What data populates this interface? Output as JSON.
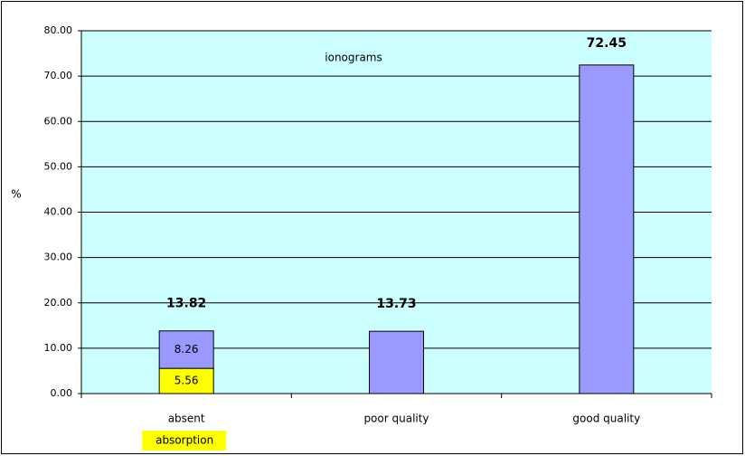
{
  "chart_data": {
    "type": "stacked_bar",
    "title": "ionograms",
    "ylabel": "%",
    "categories": [
      "absent",
      "poor quality",
      "good quality"
    ],
    "series": [
      {
        "name": "absorption",
        "color": "#ffff00",
        "values": [
          5.56,
          null,
          null
        ]
      },
      {
        "color": "#9999ff",
        "values": [
          8.26,
          13.73,
          72.45
        ]
      }
    ],
    "totals": [
      13.82,
      13.73,
      72.45
    ],
    "ylim": [
      0,
      80
    ],
    "yticks": [
      {
        "value": 0,
        "label": "0.00"
      },
      {
        "value": 10,
        "label": "10.00"
      },
      {
        "value": 20,
        "label": "20.00"
      },
      {
        "value": 30,
        "label": "30.00"
      },
      {
        "value": 40,
        "label": "40.00"
      },
      {
        "value": 50,
        "label": "50.00"
      },
      {
        "value": 60,
        "label": "60.00"
      },
      {
        "value": 70,
        "label": "70.00"
      },
      {
        "value": 80,
        "label": "80.00"
      }
    ],
    "grid": true,
    "background": "#ccffff"
  }
}
